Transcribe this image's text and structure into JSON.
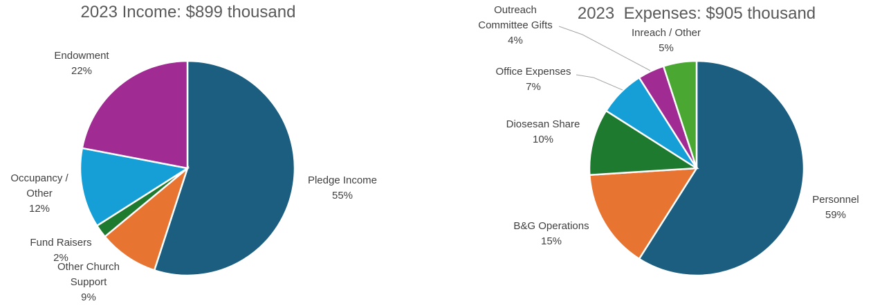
{
  "chart_data": [
    {
      "type": "pie",
      "title": "2023 Income: $899 thousand",
      "categories": [
        "Pledge Income",
        "Other Church Support",
        "Fund Raisers",
        "Occupancy / Other",
        "Endowment"
      ],
      "values": [
        55,
        9,
        2,
        12,
        22
      ],
      "value_labels": [
        "55%",
        "9%",
        "2%",
        "12%",
        "22%"
      ],
      "colors": [
        "#1b5e80",
        "#e87431",
        "#1e7a2e",
        "#159fd6",
        "#a02b93"
      ]
    },
    {
      "type": "pie",
      "title": "2023  Expenses: $905 thousand",
      "categories": [
        "Personnel",
        "B&G Operations",
        "Diosesan Share",
        "Office Expenses",
        "Outreach Committee Gifts",
        "Inreach / Other"
      ],
      "values": [
        59,
        15,
        10,
        7,
        4,
        5
      ],
      "value_labels": [
        "59%",
        "15%",
        "10%",
        "7%",
        "4%",
        "5%"
      ],
      "colors": [
        "#1b5e80",
        "#e87431",
        "#1e7a2e",
        "#159fd6",
        "#a02b93",
        "#4aa832"
      ]
    }
  ]
}
